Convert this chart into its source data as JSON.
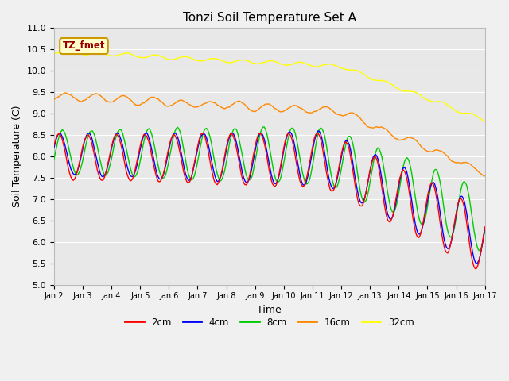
{
  "title": "Tonzi Soil Temperature Set A",
  "xlabel": "Time",
  "ylabel": "Soil Temperature (C)",
  "ylim": [
    5.0,
    11.0
  ],
  "yticks": [
    5.0,
    5.5,
    6.0,
    6.5,
    7.0,
    7.5,
    8.0,
    8.5,
    9.0,
    9.5,
    10.0,
    10.5,
    11.0
  ],
  "xtick_labels": [
    "Jan 2",
    "Jan 3",
    "Jan 4",
    "Jan 5",
    "Jan 6",
    "Jan 7",
    "Jan 8",
    "Jan 9",
    "Jan 10",
    "Jan 11",
    "Jan 12",
    "Jan 13",
    "Jan 14",
    "Jan 15",
    "Jan 16",
    "Jan 17"
  ],
  "legend_label": "TZ_fmet",
  "legend_bg": "#ffffcc",
  "legend_border": "#cc9900",
  "legend_text_color": "#990000",
  "series_colors": {
    "2cm": "#ff0000",
    "4cm": "#0000ff",
    "8cm": "#00cc00",
    "16cm": "#ff8800",
    "32cm": "#ffff00"
  },
  "series_linewidth": 1.0,
  "bg_color": "#e8e8e8",
  "figsize": [
    6.4,
    4.8
  ],
  "dpi": 100
}
